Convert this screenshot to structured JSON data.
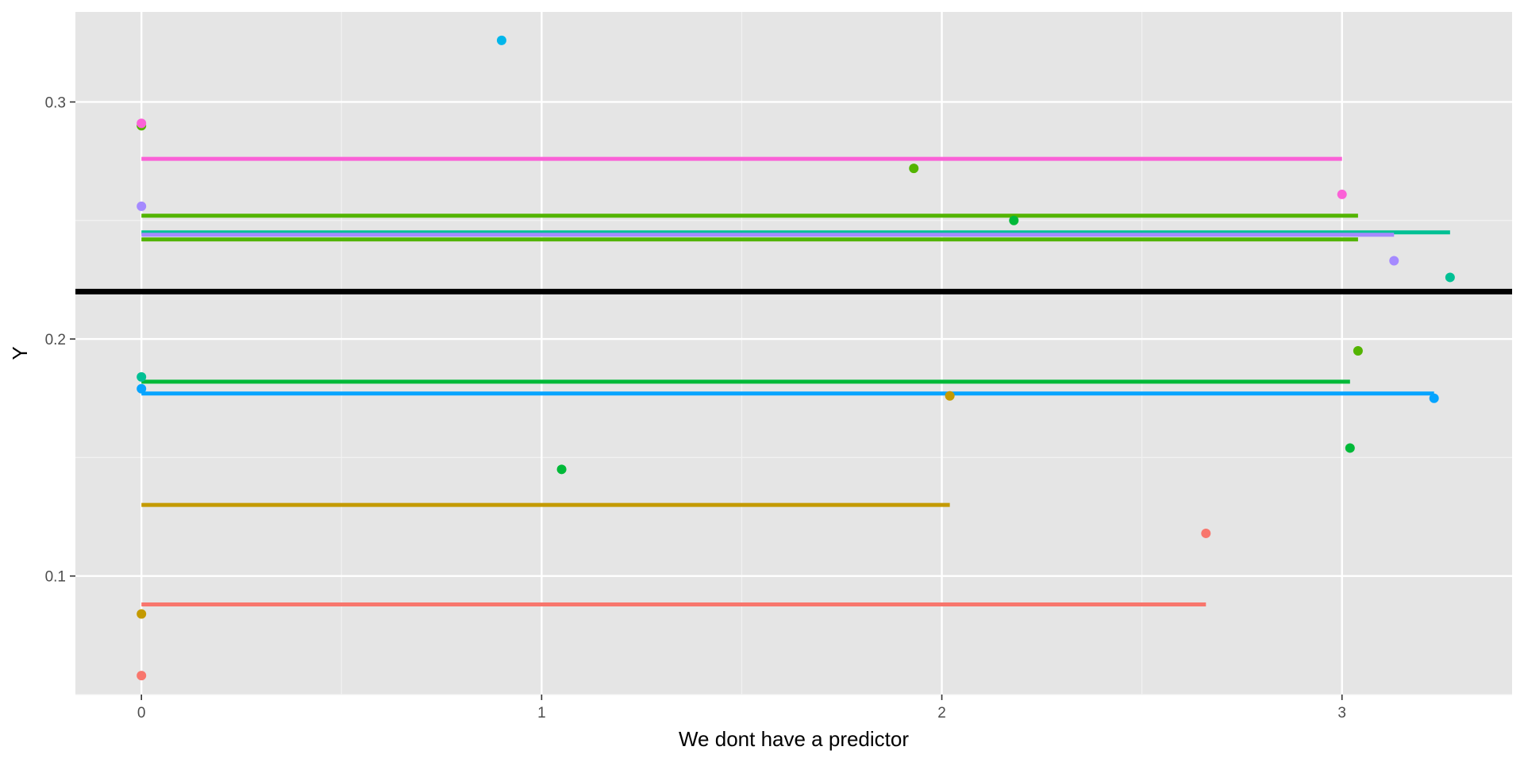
{
  "chart_data": {
    "type": "scatter",
    "title": "",
    "xlabel": "We dont have a predictor",
    "ylabel": "Y",
    "xlim": [
      -0.165,
      3.425
    ],
    "ylim": [
      0.05,
      0.338
    ],
    "x_ticks": [
      0,
      1,
      2,
      3
    ],
    "x_tick_labels": [
      "0",
      "1",
      "2",
      "3"
    ],
    "y_ticks": [
      0.1,
      0.2,
      0.3
    ],
    "y_tick_labels": [
      "0.1",
      "0.2",
      "0.3"
    ],
    "grid": true,
    "legend": "none",
    "background": "#e5e5e5",
    "hline": {
      "y": 0.22,
      "color": "#000000"
    },
    "groups": [
      {
        "color": "#f8766d",
        "points": [
          {
            "x": 0,
            "y": 0.058
          },
          {
            "x": 2.66,
            "y": 0.118
          }
        ],
        "segment": {
          "x0": 0,
          "x1": 2.66,
          "y": 0.088
        }
      },
      {
        "color": "#c49a00",
        "points": [
          {
            "x": 0,
            "y": 0.084
          },
          {
            "x": 2.02,
            "y": 0.176
          }
        ],
        "segment": {
          "x0": 0,
          "x1": 2.02,
          "y": 0.13
        }
      },
      {
        "color": "#53b400",
        "points": [
          {
            "x": 0,
            "y": 0.29
          },
          {
            "x": 3.04,
            "y": 0.195
          }
        ],
        "segment": {
          "x0": 0,
          "x1": 3.04,
          "y": 0.242
        }
      },
      {
        "color": "#00b938",
        "points": [
          {
            "x": 1.05,
            "y": 0.145
          },
          {
            "x": 3.02,
            "y": 0.154
          },
          {
            "x": 2.18,
            "y": 0.25
          }
        ],
        "segment": {
          "x0": 0,
          "x1": 3.02,
          "y": 0.182
        }
      },
      {
        "color": "#00c094",
        "points": [
          {
            "x": 0,
            "y": 0.184
          },
          {
            "x": 3.27,
            "y": 0.226
          }
        ],
        "segment": {
          "x0": 0,
          "x1": 3.27,
          "y": 0.245
        }
      },
      {
        "color": "#00b6eb",
        "points": [
          {
            "x": 0.9,
            "y": 0.326
          }
        ],
        "segment": null
      },
      {
        "color": "#06a4ff",
        "points": [
          {
            "x": 0,
            "y": 0.179
          },
          {
            "x": 3.23,
            "y": 0.175
          }
        ],
        "segment": {
          "x0": 0,
          "x1": 3.23,
          "y": 0.177
        }
      },
      {
        "color": "#a58aff",
        "points": [
          {
            "x": 0,
            "y": 0.256
          },
          {
            "x": 3.13,
            "y": 0.233
          }
        ],
        "segment": {
          "x0": 0,
          "x1": 3.13,
          "y": 0.244
        }
      },
      {
        "color": "#fb61d7",
        "points": [
          {
            "x": 0,
            "y": 0.291
          },
          {
            "x": 3.0,
            "y": 0.261
          }
        ],
        "segment": {
          "x0": 0,
          "x1": 3.0,
          "y": 0.276
        }
      },
      {
        "color": "#53b400",
        "points": [
          {
            "x": 1.93,
            "y": 0.272
          }
        ],
        "segment": {
          "x0": 0,
          "x1": 3.04,
          "y": 0.252
        }
      }
    ]
  }
}
